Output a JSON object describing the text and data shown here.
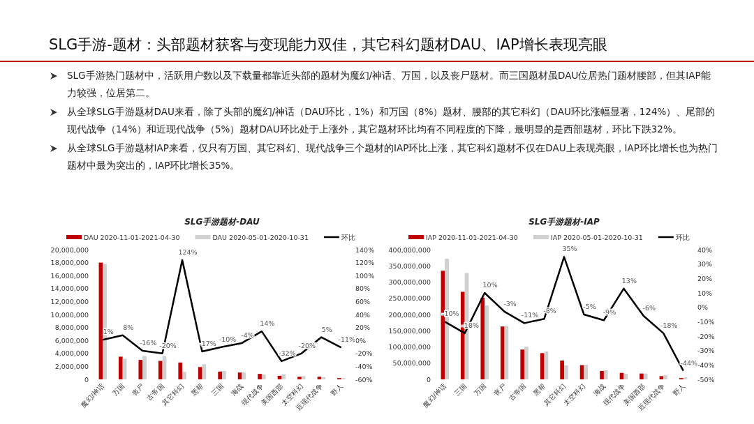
{
  "chart_data": [
    {
      "type": "other",
      "title": "SLG手游-题材：头部题材获客与变现能力双佳，其它科幻题材DAU、IAP增长表现亮眼",
      "annotations": [
        "SLG手游热门题材中，活跃用户数以及下载量都靠近头部的题材为魔幻/神话、万国，以及丧尸题材。而三国题材虽DAU位居热门题材腰部，但其IAP能力较强，位居第二。",
        "从全球SLG手游题材DAU来看，除了头部的魔幻/神话（DAU环比，1%）和万国（8%）题材、腰部的其它科幻（DAU环比涨幅显著，124%）、尾部的现代战争（14%）和近现代战争（5%）题材DAU环比处于上涨外，其它题材环比均有不同程度的下降，最明显的是西部题材，环比下跌32%。",
        "从全球SLG手游题材IAP来看，仅只有万国、其它科幻、现代战争三个题材的IAP环比上涨，其它科幻题材不仅在DAU上表现亮眼，IAP环比增长也为热门题材中最为突出的，IAP环比增长35%。"
      ]
    },
    {
      "type": "bar",
      "title": "SLG手游题材-DAU",
      "legend": "top",
      "categories": [
        "魔幻/神话",
        "万国",
        "丧尸",
        "古帝国",
        "其它科幻",
        "黑帮",
        "三国",
        "海战",
        "现代战争",
        "美国西部",
        "太空科幻",
        "近现代战争",
        "野人"
      ],
      "series": [
        {
          "name": "DAU 2020-11-01-2021-04-30",
          "color": "#c00000",
          "values": [
            18000000,
            3500000,
            3000000,
            2850000,
            2600000,
            1900000,
            1200000,
            1050000,
            850000,
            550000,
            400000,
            400000,
            200000
          ]
        },
        {
          "name": "DAU 2020-05-01-2020-10-31",
          "color": "#d0d0d0",
          "values": [
            17800000,
            3200000,
            3600000,
            3600000,
            1150000,
            2350000,
            1300000,
            1050000,
            750000,
            800000,
            500000,
            350000,
            200000
          ]
        },
        {
          "name": "环比",
          "color": "#000000",
          "type": "line",
          "axis": "y2",
          "values": [
            1,
            8,
            -16,
            -20,
            124,
            -17,
            -10,
            -4,
            14,
            -32,
            -20,
            5,
            -11
          ],
          "value_labels": [
            "1%",
            "8%",
            "-16%",
            "-20%",
            "124%",
            "-17%",
            "-10%",
            "-4%",
            "14%",
            "-32%",
            "-20%",
            "5%",
            "-11%"
          ]
        }
      ],
      "ylim": [
        0,
        20000000
      ],
      "yticks": [
        {
          "value": 0,
          "label": "0"
        },
        {
          "value": 2000000,
          "label": "2,000,000"
        },
        {
          "value": 4000000,
          "label": "4,000,000"
        },
        {
          "value": 6000000,
          "label": "6,000,000"
        },
        {
          "value": 8000000,
          "label": "8,000,000"
        },
        {
          "value": 10000000,
          "label": "10,000,000"
        },
        {
          "value": 12000000,
          "label": "12,000,000"
        },
        {
          "value": 14000000,
          "label": "14,000,000"
        },
        {
          "value": 16000000,
          "label": "16,000,000"
        },
        {
          "value": 18000000,
          "label": "18,000,000"
        },
        {
          "value": 20000000,
          "label": "20,000,000"
        }
      ],
      "y2lim": [
        -60,
        140
      ],
      "y2ticks": [
        {
          "value": -60,
          "label": "-60%"
        },
        {
          "value": -40,
          "label": "-40%"
        },
        {
          "value": -20,
          "label": "-20%"
        },
        {
          "value": 0,
          "label": "0%"
        },
        {
          "value": 20,
          "label": "20%"
        },
        {
          "value": 40,
          "label": "40%"
        },
        {
          "value": 60,
          "label": "60%"
        },
        {
          "value": 80,
          "label": "80%"
        },
        {
          "value": 100,
          "label": "100%"
        },
        {
          "value": 120,
          "label": "120%"
        },
        {
          "value": 140,
          "label": "140%"
        }
      ]
    },
    {
      "type": "bar",
      "title": "SLG手游题材-IAP",
      "legend": "top",
      "categories": [
        "魔幻/神话",
        "三国",
        "万国",
        "丧尸",
        "古帝国",
        "黑帮",
        "其它科幻",
        "太空科幻",
        "海战",
        "现代战争",
        "美国西部",
        "近现代战争",
        "野人"
      ],
      "series": [
        {
          "name": "IAP 2020-11-01-2021-04-30",
          "color": "#c00000",
          "values": [
            335000000,
            270000000,
            252000000,
            163000000,
            92000000,
            81000000,
            58000000,
            44000000,
            26000000,
            20000000,
            18000000,
            10000000,
            4000000
          ]
        },
        {
          "name": "IAP 2020-05-01-2020-10-31",
          "color": "#d0d0d0",
          "values": [
            372000000,
            328000000,
            228000000,
            165000000,
            101000000,
            86000000,
            43000000,
            45000000,
            28000000,
            17000000,
            18000000,
            13000000,
            6000000
          ]
        },
        {
          "name": "环比",
          "color": "#000000",
          "type": "line",
          "axis": "y2",
          "values": [
            -10,
            -18,
            10,
            -3,
            -11,
            -8,
            35,
            -5,
            -9,
            13,
            -6,
            -18,
            -44
          ],
          "value_labels": [
            "-10%",
            "-18%",
            "10%",
            "-3%",
            "-11%",
            "-8%",
            "35%",
            "-5%",
            "-9%",
            "13%",
            "-6%",
            "-18%",
            "-44%"
          ]
        }
      ],
      "ylim": [
        0,
        400000000
      ],
      "yticks": [
        {
          "value": 0,
          "label": "0"
        },
        {
          "value": 50000000,
          "label": "50,000,000"
        },
        {
          "value": 100000000,
          "label": "100,000,000"
        },
        {
          "value": 150000000,
          "label": "150,000,000"
        },
        {
          "value": 200000000,
          "label": "200,000,000"
        },
        {
          "value": 250000000,
          "label": "250,000,000"
        },
        {
          "value": 300000000,
          "label": "300,000,000"
        },
        {
          "value": 350000000,
          "label": "350,000,000"
        },
        {
          "value": 400000000,
          "label": "400,000,000"
        }
      ],
      "y2lim": [
        -50,
        40
      ],
      "y2ticks": [
        {
          "value": -50,
          "label": "-50%"
        },
        {
          "value": -40,
          "label": "-40%"
        },
        {
          "value": -30,
          "label": "-30%"
        },
        {
          "value": -20,
          "label": "-20%"
        },
        {
          "value": -10,
          "label": "-10%"
        },
        {
          "value": 0,
          "label": "0%"
        },
        {
          "value": 10,
          "label": "10%"
        },
        {
          "value": 20,
          "label": "20%"
        },
        {
          "value": 30,
          "label": "30%"
        },
        {
          "value": 40,
          "label": "40%"
        }
      ]
    }
  ]
}
